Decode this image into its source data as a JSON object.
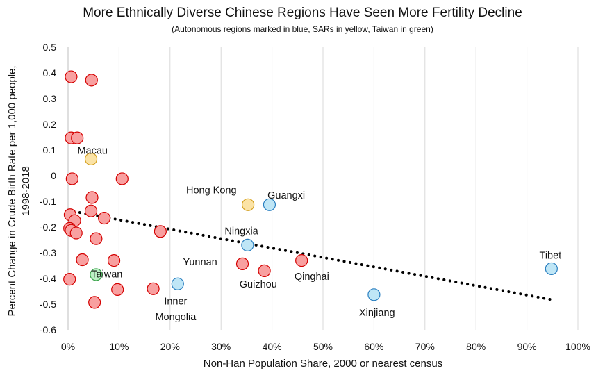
{
  "chart_data": {
    "type": "scatter",
    "title": "More Ethnically Diverse Chinese Regions Have Seen More Fertility Decline",
    "subtitle": "(Autonomous regions marked in blue, SARs in yellow, Taiwan in green)",
    "xlabel": "Non-Han Population Share, 2000 or nearest census",
    "ylabel": [
      "Percent Change in Crude Birth Rate per 1,000 people,",
      "1998-2018"
    ],
    "xlim": [
      0,
      1
    ],
    "ylim": [
      -0.6,
      0.5
    ],
    "x_ticks": [
      0,
      0.1,
      0.2,
      0.3,
      0.4,
      0.5,
      0.6,
      0.7,
      0.8,
      0.9,
      1.0
    ],
    "x_tick_labels": [
      "0%",
      "10%",
      "20%",
      "30%",
      "40%",
      "50%",
      "60%",
      "70%",
      "80%",
      "90%",
      "100%"
    ],
    "y_ticks": [
      -0.6,
      -0.5,
      -0.4,
      -0.3,
      -0.2,
      -0.1,
      0,
      0.1,
      0.2,
      0.3,
      0.4,
      0.5
    ],
    "y_tick_labels": [
      "-0.6",
      "-0.5",
      "-0.4",
      "-0.3",
      "-0.2",
      "-0.1",
      "0",
      "0.1",
      "0.2",
      "0.3",
      "0.4",
      "0.5"
    ],
    "gridlines": "vertical",
    "colors": {
      "province_fill": "#f8a0a0",
      "province_stroke": "#d40000",
      "autonomous_fill": "#bfe6f6",
      "autonomous_stroke": "#2a7fc0",
      "sar_fill": "#fbe3a6",
      "sar_stroke": "#d4a020",
      "taiwan_fill": "#bdf0c6",
      "taiwan_stroke": "#3aa24a",
      "grid": "#d9d9d9",
      "trend": "#000000"
    },
    "series": [
      {
        "group": "province",
        "points": [
          {
            "x": 0.006,
            "y": 0.385
          },
          {
            "x": 0.046,
            "y": 0.372
          },
          {
            "x": 0.006,
            "y": 0.147
          },
          {
            "x": 0.018,
            "y": 0.147
          },
          {
            "x": 0.008,
            "y": -0.012
          },
          {
            "x": 0.106,
            "y": -0.012
          },
          {
            "x": 0.047,
            "y": -0.085
          },
          {
            "x": 0.004,
            "y": -0.152
          },
          {
            "x": 0.045,
            "y": -0.137
          },
          {
            "x": 0.071,
            "y": -0.165
          },
          {
            "x": 0.013,
            "y": -0.175
          },
          {
            "x": 0.003,
            "y": -0.205
          },
          {
            "x": 0.006,
            "y": -0.213
          },
          {
            "x": 0.016,
            "y": -0.223
          },
          {
            "x": 0.181,
            "y": -0.217
          },
          {
            "x": 0.055,
            "y": -0.245
          },
          {
            "x": 0.028,
            "y": -0.327
          },
          {
            "x": 0.09,
            "y": -0.33
          },
          {
            "x": 0.003,
            "y": -0.403
          },
          {
            "x": 0.097,
            "y": -0.443
          },
          {
            "x": 0.167,
            "y": -0.44
          },
          {
            "x": 0.052,
            "y": -0.493
          },
          {
            "x": 0.342,
            "y": -0.343
          },
          {
            "x": 0.385,
            "y": -0.37
          },
          {
            "x": 0.458,
            "y": -0.33
          }
        ]
      },
      {
        "group": "autonomous",
        "points": [
          {
            "x": 0.395,
            "y": -0.113
          },
          {
            "x": 0.352,
            "y": -0.27
          },
          {
            "x": 0.215,
            "y": -0.421
          },
          {
            "x": 0.6,
            "y": -0.463
          },
          {
            "x": 0.948,
            "y": -0.362
          }
        ]
      },
      {
        "group": "sar",
        "points": [
          {
            "x": 0.045,
            "y": 0.065
          },
          {
            "x": 0.353,
            "y": -0.113
          }
        ]
      },
      {
        "group": "taiwan",
        "points": [
          {
            "x": 0.055,
            "y": -0.385
          }
        ]
      }
    ],
    "trendline": {
      "x": [
        0.0,
        0.95
      ],
      "y": [
        -0.135,
        -0.483
      ]
    },
    "annotations": [
      {
        "text": "Macau",
        "x": 0.048,
        "y": 0.098
      },
      {
        "text": "Hong Kong",
        "x": 0.281,
        "y": -0.055
      },
      {
        "text": "Guangxi",
        "x": 0.428,
        "y": -0.075
      },
      {
        "text": "Ningxia",
        "x": 0.34,
        "y": -0.215
      },
      {
        "text": "Yunnan",
        "x": 0.259,
        "y": -0.335
      },
      {
        "text": "Taiwan",
        "x": 0.076,
        "y": -0.382
      },
      {
        "text": "Guizhou",
        "x": 0.373,
        "y": -0.422
      },
      {
        "text": "Qinghai",
        "x": 0.478,
        "y": -0.392
      },
      {
        "text": "Inner",
        "x": 0.211,
        "y": -0.488
      },
      {
        "text": "Mongolia",
        "x": 0.211,
        "y": -0.548
      },
      {
        "text": "Xinjiang",
        "x": 0.606,
        "y": -0.532
      },
      {
        "text": "Tibet",
        "x": 0.946,
        "y": -0.31
      }
    ]
  }
}
